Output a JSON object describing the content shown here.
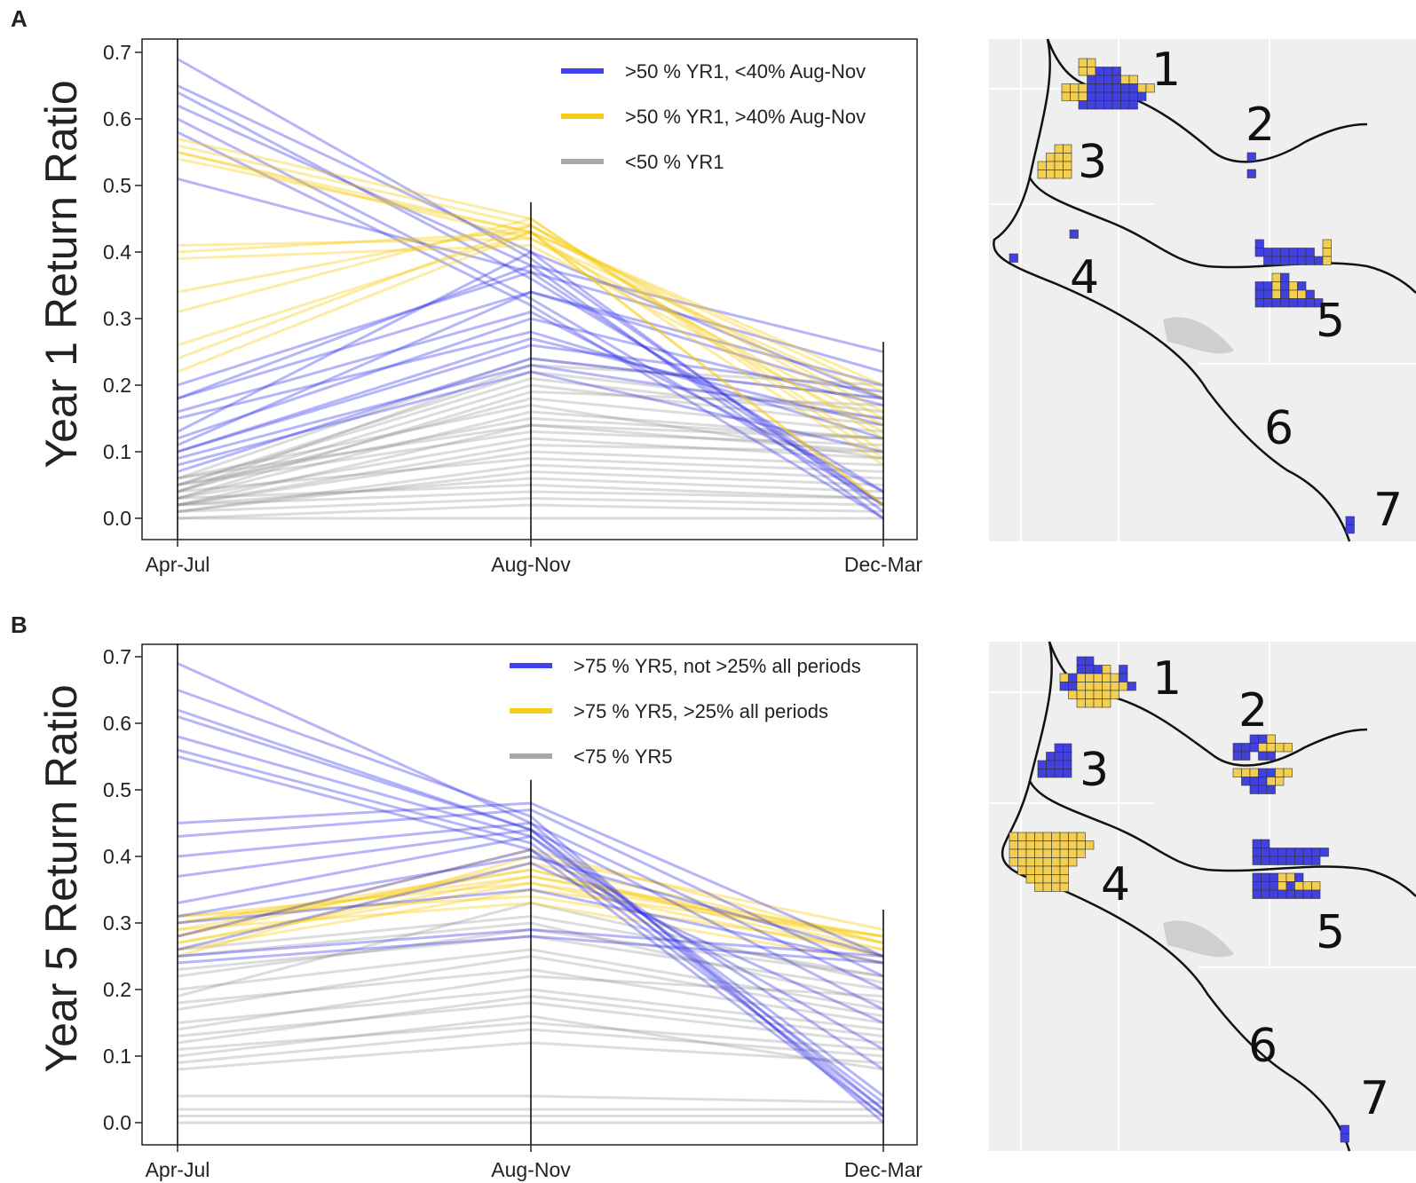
{
  "figure": {
    "panels": [
      "A",
      "B"
    ]
  },
  "colors": {
    "blue": "#2b2bea",
    "yellow": "#f5c800",
    "gray": "#8c8c8c",
    "map_bg": "#efefef",
    "map_cell_blue": "#4141e0",
    "map_cell_yellow": "#f2cf52"
  },
  "chart_data": [
    {
      "type": "line",
      "panel": "A",
      "ylabel": "Year 1 Return Ratio",
      "categories": [
        "Apr-Jul",
        "Aug-Nov",
        "Dec-Mar"
      ],
      "ylim": [
        0,
        0.72
      ],
      "yticks": [
        "0.0",
        "0.1",
        "0.2",
        "0.3",
        "0.4",
        "0.5",
        "0.6",
        "0.7"
      ],
      "axis_line_tops": [
        0.72,
        0.475,
        0.265
      ],
      "legend": [
        {
          "label": ">50 % YR1, <40% Aug-Nov",
          "color": "blue"
        },
        {
          "label": ">50 % YR1, >40% Aug-Nov",
          "color": "yellow"
        },
        {
          "label": "<50 % YR1",
          "color": "gray"
        }
      ],
      "series": [
        {
          "name": "gray",
          "opacity": 0.3,
          "lines": [
            [
              0.06,
              0.14,
              0.1
            ],
            [
              0.05,
              0.15,
              0.12
            ],
            [
              0.04,
              0.2,
              0.14
            ],
            [
              0.05,
              0.22,
              0.16
            ],
            [
              0.03,
              0.12,
              0.09
            ],
            [
              0.02,
              0.1,
              0.08
            ],
            [
              0.06,
              0.24,
              0.18
            ],
            [
              0.04,
              0.18,
              0.13
            ],
            [
              0.01,
              0.08,
              0.06
            ],
            [
              0.03,
              0.16,
              0.12
            ],
            [
              0.02,
              0.06,
              0.04
            ],
            [
              0.05,
              0.13,
              0.11
            ],
            [
              0.04,
              0.09,
              0.07
            ],
            [
              0.03,
              0.05,
              0.03
            ],
            [
              0.01,
              0.03,
              0.02
            ],
            [
              0.0,
              0.02,
              0.01
            ],
            [
              0.0,
              0.0,
              0.0
            ],
            [
              0.02,
              0.11,
              0.1
            ],
            [
              0.05,
              0.21,
              0.15
            ],
            [
              0.03,
              0.19,
              0.17
            ],
            [
              0.06,
              0.17,
              0.09
            ],
            [
              0.02,
              0.14,
              0.12
            ],
            [
              0.01,
              0.07,
              0.05
            ],
            [
              0.04,
              0.23,
              0.2
            ],
            [
              0.02,
              0.04,
              0.03
            ]
          ]
        },
        {
          "name": "blue",
          "opacity": 0.35,
          "lines": [
            [
              0.69,
              0.39,
              0.02
            ],
            [
              0.65,
              0.4,
              0.01
            ],
            [
              0.62,
              0.38,
              0.0
            ],
            [
              0.6,
              0.33,
              0.02
            ],
            [
              0.64,
              0.36,
              0.04
            ],
            [
              0.58,
              0.32,
              0.0
            ],
            [
              0.51,
              0.37,
              0.02
            ],
            [
              0.18,
              0.34,
              0.18
            ],
            [
              0.12,
              0.3,
              0.17
            ],
            [
              0.1,
              0.26,
              0.19
            ],
            [
              0.09,
              0.23,
              0.15
            ],
            [
              0.2,
              0.37,
              0.22
            ],
            [
              0.15,
              0.28,
              0.12
            ],
            [
              0.11,
              0.34,
              0.2
            ],
            [
              0.08,
              0.22,
              0.1
            ],
            [
              0.13,
              0.4,
              0.18
            ],
            [
              0.18,
              0.38,
              0.25
            ],
            [
              0.1,
              0.27,
              0.14
            ],
            [
              0.07,
              0.24,
              0.18
            ],
            [
              0.16,
              0.31,
              0.04
            ]
          ]
        },
        {
          "name": "yellow",
          "opacity": 0.35,
          "lines": [
            [
              0.56,
              0.44,
              0.12
            ],
            [
              0.55,
              0.43,
              0.02
            ],
            [
              0.57,
              0.45,
              0.1
            ],
            [
              0.55,
              0.42,
              0.18
            ],
            [
              0.41,
              0.42,
              0.14
            ],
            [
              0.4,
              0.43,
              0.08
            ],
            [
              0.34,
              0.44,
              0.16
            ],
            [
              0.31,
              0.45,
              0.09
            ],
            [
              0.26,
              0.43,
              0.2
            ],
            [
              0.24,
              0.44,
              0.15
            ],
            [
              0.22,
              0.43,
              0.19
            ],
            [
              0.39,
              0.41,
              0.13
            ],
            [
              0.54,
              0.43,
              0.02
            ]
          ]
        }
      ]
    },
    {
      "type": "line",
      "panel": "B",
      "ylabel": "Year 5 Return Ratio",
      "categories": [
        "Apr-Jul",
        "Aug-Nov",
        "Dec-Mar"
      ],
      "ylim": [
        0,
        0.72
      ],
      "yticks": [
        "0.0",
        "0.1",
        "0.2",
        "0.3",
        "0.4",
        "0.5",
        "0.6",
        "0.7"
      ],
      "axis_line_tops": [
        0.72,
        0.515,
        0.32
      ],
      "legend": [
        {
          "label": ">75 % YR5,  not >25% all periods",
          "color": "blue"
        },
        {
          "label": ">75 % YR5, >25% all periods",
          "color": "yellow"
        },
        {
          "label": "<75 % YR5",
          "color": "gray"
        }
      ],
      "series": [
        {
          "name": "gray",
          "opacity": 0.3,
          "lines": [
            [
              0.25,
              0.3,
              0.18
            ],
            [
              0.23,
              0.28,
              0.2
            ],
            [
              0.22,
              0.29,
              0.22
            ],
            [
              0.2,
              0.26,
              0.17
            ],
            [
              0.18,
              0.23,
              0.15
            ],
            [
              0.15,
              0.2,
              0.14
            ],
            [
              0.13,
              0.18,
              0.12
            ],
            [
              0.11,
              0.15,
              0.11
            ],
            [
              0.09,
              0.14,
              0.1
            ],
            [
              0.08,
              0.12,
              0.09
            ],
            [
              0.14,
              0.22,
              0.19
            ],
            [
              0.17,
              0.25,
              0.16
            ],
            [
              0.04,
              0.04,
              0.03
            ],
            [
              0.02,
              0.02,
              0.02
            ],
            [
              0.01,
              0.01,
              0.01
            ],
            [
              0.0,
              0.0,
              0.0
            ],
            [
              0.19,
              0.33,
              0.21
            ],
            [
              0.12,
              0.19,
              0.13
            ],
            [
              0.1,
              0.16,
              0.08
            ],
            [
              0.26,
              0.31,
              0.22
            ]
          ]
        },
        {
          "name": "yellow",
          "opacity": 0.35,
          "lines": [
            [
              0.31,
              0.36,
              0.28
            ],
            [
              0.3,
              0.37,
              0.27
            ],
            [
              0.29,
              0.38,
              0.26
            ],
            [
              0.28,
              0.39,
              0.27
            ],
            [
              0.27,
              0.36,
              0.25
            ],
            [
              0.26,
              0.35,
              0.28
            ],
            [
              0.29,
              0.33,
              0.24
            ],
            [
              0.25,
              0.4,
              0.29
            ],
            [
              0.31,
              0.34,
              0.26
            ],
            [
              0.28,
              0.41,
              0.27
            ],
            [
              0.27,
              0.37,
              0.28
            ],
            [
              0.3,
              0.38,
              0.25
            ]
          ]
        },
        {
          "name": "blue",
          "opacity": 0.35,
          "lines": [
            [
              0.69,
              0.45,
              0.02
            ],
            [
              0.65,
              0.46,
              0.0
            ],
            [
              0.62,
              0.44,
              0.01
            ],
            [
              0.58,
              0.43,
              0.03
            ],
            [
              0.56,
              0.42,
              0.02
            ],
            [
              0.55,
              0.41,
              0.01
            ],
            [
              0.45,
              0.48,
              0.25
            ],
            [
              0.43,
              0.47,
              0.22
            ],
            [
              0.4,
              0.45,
              0.2
            ],
            [
              0.37,
              0.44,
              0.17
            ],
            [
              0.31,
              0.4,
              0.25
            ],
            [
              0.3,
              0.35,
              0.24
            ],
            [
              0.25,
              0.29,
              0.25
            ],
            [
              0.24,
              0.28,
              0.24
            ],
            [
              0.28,
              0.41,
              0.11
            ],
            [
              0.33,
              0.43,
              0.08
            ],
            [
              0.61,
              0.44,
              0.04
            ],
            [
              0.26,
              0.39,
              0.15
            ]
          ]
        }
      ]
    }
  ],
  "maps": [
    {
      "panel": "A",
      "labels": [
        "1",
        "2",
        "3",
        "4",
        "5",
        "6",
        "7"
      ],
      "clusters": [
        {
          "site": "1",
          "cells": [
            "..YY.......",
            "..YYBBB....",
            "...BBBBYY..",
            "YYYBBBBBBYY",
            "YYYBBBBBBB.",
            "..BBBBBBB.."
          ]
        },
        {
          "site": "2",
          "cells": [
            "B",
            ".",
            "B"
          ]
        },
        {
          "site": "3",
          "cells": [
            "..YY",
            ".YYY",
            "YYYY",
            "YYYY"
          ]
        },
        {
          "site": "4a",
          "cells": [
            "B"
          ]
        },
        {
          "site": "4b",
          "cells": [
            "B"
          ]
        },
        {
          "site": "5",
          "cells": [
            "B.......Y",
            "BBBBBBB.Y",
            ".BBBBBBBY",
            "........",
            "..YB.....",
            "BBYBYB...",
            "BBYBYYB..",
            "BBBBBBBB."
          ]
        },
        {
          "site": "7",
          "cells": [
            "B",
            "B"
          ]
        }
      ]
    },
    {
      "panel": "B",
      "labels": [
        "1",
        "2",
        "3",
        "4",
        "5",
        "6",
        "7"
      ],
      "clusters": [
        {
          "site": "1",
          "cells": [
            "..BB.....",
            "..BBBY.B.",
            "YBYYYYYB.",
            "BBYYYYYYB",
            ".YYYYYY..",
            "..YYYY..."
          ]
        },
        {
          "site": "2",
          "cells": [
            "..BBY..",
            "BBBYYYY",
            "BB.BB..",
            ".......",
            "YYYBBYY",
            ".BBBYY.",
            "..BBB.."
          ]
        },
        {
          "site": "3",
          "cells": [
            "..BB",
            ".BBB",
            "BBBB",
            "BBBB"
          ]
        },
        {
          "site": "4",
          "cells": [
            "YYYYYYYYY.",
            "YYYYYYYYYY",
            "YYYYYYYYY.",
            "YYYYYYYY..",
            ".YYYYYY...",
            "..YYYYY...",
            "...YYYY..."
          ]
        },
        {
          "site": "5",
          "cells": [
            "BB......",
            "BBBBBBBBB",
            "BBBBBBBB.",
            ".........",
            "BBBYYB...",
            "BBBYBYYY.",
            "BBBBBBBB."
          ]
        },
        {
          "site": "7",
          "cells": [
            "B",
            "B"
          ]
        }
      ]
    }
  ]
}
